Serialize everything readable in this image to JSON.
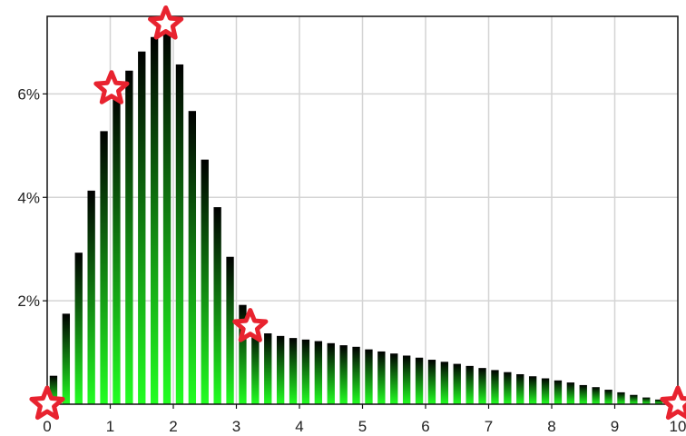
{
  "chart_data": {
    "type": "bar",
    "title": "",
    "xlabel": "",
    "ylabel": "",
    "xlim": [
      0,
      10
    ],
    "ylim": [
      0,
      7.5
    ],
    "grid": true,
    "x_ticks": [
      {
        "value": 0,
        "label": "0"
      },
      {
        "value": 1,
        "label": "1"
      },
      {
        "value": 2,
        "label": "2"
      },
      {
        "value": 3,
        "label": "3"
      },
      {
        "value": 4,
        "label": "4"
      },
      {
        "value": 5,
        "label": "5"
      },
      {
        "value": 6,
        "label": "6"
      },
      {
        "value": 7,
        "label": "7"
      },
      {
        "value": 8,
        "label": "8"
      },
      {
        "value": 9,
        "label": "9"
      },
      {
        "value": 10,
        "label": "10"
      }
    ],
    "y_ticks": [
      {
        "value": 2,
        "label": "2%"
      },
      {
        "value": 4,
        "label": "4%"
      },
      {
        "value": 6,
        "label": "6%"
      }
    ],
    "bar_width": 0.12,
    "x": [
      0.1,
      0.3,
      0.5,
      0.7,
      0.9,
      1.1,
      1.3,
      1.5,
      1.7,
      1.9,
      2.1,
      2.3,
      2.5,
      2.7,
      2.9,
      3.1,
      3.3,
      3.5,
      3.7,
      3.9,
      4.1,
      4.3,
      4.5,
      4.7,
      4.9,
      5.1,
      5.3,
      5.5,
      5.7,
      5.9,
      6.1,
      6.3,
      6.5,
      6.7,
      6.9,
      7.1,
      7.3,
      7.5,
      7.7,
      7.9,
      8.1,
      8.3,
      8.5,
      8.7,
      8.9,
      9.1,
      9.3,
      9.5,
      9.7,
      9.9
    ],
    "values": [
      0.55,
      1.75,
      2.93,
      4.13,
      5.28,
      6.02,
      6.45,
      6.82,
      7.1,
      7.25,
      6.57,
      5.67,
      4.73,
      3.81,
      2.85,
      1.92,
      1.45,
      1.37,
      1.32,
      1.28,
      1.25,
      1.22,
      1.18,
      1.14,
      1.11,
      1.06,
      1.02,
      0.98,
      0.94,
      0.9,
      0.86,
      0.82,
      0.78,
      0.74,
      0.7,
      0.66,
      0.62,
      0.58,
      0.54,
      0.5,
      0.46,
      0.42,
      0.37,
      0.33,
      0.28,
      0.23,
      0.18,
      0.13,
      0.09,
      0.05
    ],
    "markers": [
      {
        "x": 0,
        "y": 0
      },
      {
        "x": 1.02,
        "y": 6.1
      },
      {
        "x": 1.88,
        "y": 7.35
      },
      {
        "x": 3.22,
        "y": 1.5
      },
      {
        "x": 10,
        "y": 0
      }
    ],
    "colors": {
      "bar_top": "#000000",
      "bar_bottom": "#22ff22",
      "grid": "#d4d4d4",
      "marker": "#e8232f",
      "marker_inner": "#ffffff"
    }
  }
}
